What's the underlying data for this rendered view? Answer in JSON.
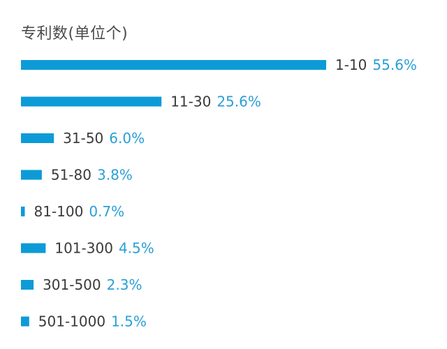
{
  "colors": {
    "bar": "#0d9bd7",
    "percent_text": "#2a9fd6",
    "category_text": "#3a3a3a",
    "title_text": "#4a4a4a"
  },
  "chart_data": {
    "type": "bar",
    "orientation": "horizontal",
    "title": "专利数(单位个)",
    "categories": [
      "1-10",
      "11-30",
      "31-50",
      "51-80",
      "81-100",
      "101-300",
      "301-500",
      "501-1000"
    ],
    "values": [
      55.6,
      25.6,
      6.0,
      3.8,
      0.7,
      4.5,
      2.3,
      1.5
    ],
    "value_labels": [
      "55.6%",
      "25.6%",
      "6.0%",
      "3.8%",
      "0.7%",
      "4.5%",
      "2.3%",
      "1.5%"
    ],
    "unit": "%",
    "grid": false,
    "legend": "none"
  }
}
